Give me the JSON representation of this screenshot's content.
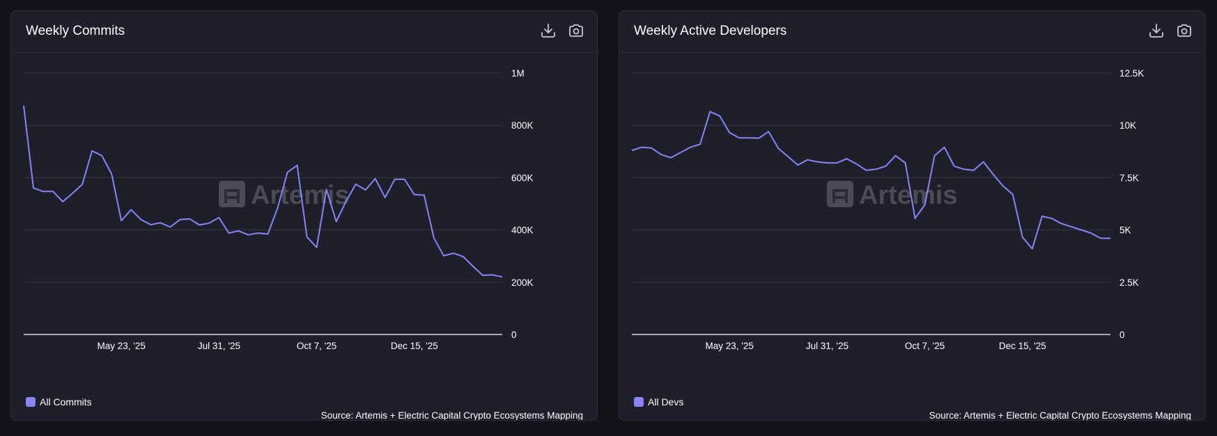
{
  "colors": {
    "background": "#131418",
    "card": "#1e1f2b",
    "grid": "#333545",
    "axis": "#ffffff",
    "series": "#8b84f7",
    "watermark": "#4a4b57"
  },
  "watermark_text": "Artemis",
  "cards": [
    {
      "title": "Weekly Commits",
      "icons": {
        "download": "download-icon",
        "camera": "camera-icon"
      },
      "legend": "All Commits",
      "source": "Source: Artemis + Electric Capital Crypto Ecosystems Mapping"
    },
    {
      "title": "Weekly Active Developers",
      "icons": {
        "download": "download-icon",
        "camera": "camera-icon"
      },
      "legend": "All Devs",
      "source": "Source: Artemis + Electric Capital Crypto Ecosystems Mapping"
    }
  ],
  "chart_data": [
    {
      "type": "line",
      "title": "Weekly Commits",
      "xlabel": "",
      "ylabel": "",
      "ylim": [
        0,
        1000000
      ],
      "grid": true,
      "legend_position": "bottom-left",
      "y_ticks": [
        0,
        200000,
        400000,
        600000,
        800000,
        1000000
      ],
      "y_tick_labels": [
        "0",
        "200K",
        "400K",
        "600K",
        "800K",
        "1M"
      ],
      "x_tick_labels": [
        "May 23, '25",
        "Jul 31, '25",
        "Oct 7, '25",
        "Dec 15, '25"
      ],
      "x_tick_indices": [
        10,
        20,
        30,
        40
      ],
      "series": [
        {
          "name": "All Commits",
          "color": "#8b84f7",
          "values": [
            875000,
            560000,
            547000,
            547000,
            508000,
            540000,
            574000,
            702000,
            684000,
            614000,
            435000,
            477000,
            440000,
            420000,
            427000,
            411000,
            439000,
            442000,
            419000,
            426000,
            447000,
            388000,
            396000,
            381000,
            388000,
            384000,
            484000,
            620000,
            647000,
            373000,
            333000,
            555000,
            432000,
            509000,
            575000,
            553000,
            596000,
            524000,
            594000,
            593000,
            535000,
            533000,
            369000,
            301000,
            311000,
            298000,
            261000,
            226000,
            228000,
            220000
          ]
        }
      ]
    },
    {
      "type": "line",
      "title": "Weekly Active Developers",
      "xlabel": "",
      "ylabel": "",
      "ylim": [
        0,
        12500
      ],
      "grid": true,
      "legend_position": "bottom-left",
      "y_ticks": [
        0,
        2500,
        5000,
        7500,
        10000,
        12500
      ],
      "y_tick_labels": [
        "0",
        "2.5K",
        "5K",
        "7.5K",
        "10K",
        "12.5K"
      ],
      "x_tick_labels": [
        "May 23, '25",
        "Jul 31, '25",
        "Oct 7, '25",
        "Dec 15, '25"
      ],
      "x_tick_indices": [
        10,
        20,
        30,
        40
      ],
      "series": [
        {
          "name": "All Devs",
          "color": "#8b84f7",
          "values": [
            8800,
            8950,
            8920,
            8600,
            8450,
            8700,
            8950,
            9100,
            10650,
            10450,
            9650,
            9400,
            9400,
            9380,
            9700,
            8900,
            8500,
            8100,
            8350,
            8250,
            8200,
            8200,
            8400,
            8150,
            7850,
            7900,
            8050,
            8550,
            8200,
            5550,
            6200,
            8550,
            8950,
            8050,
            7900,
            7850,
            8250,
            7650,
            7100,
            6700,
            4650,
            4100,
            5650,
            5550,
            5300,
            5150,
            5000,
            4850,
            4600,
            4600
          ]
        }
      ]
    }
  ]
}
